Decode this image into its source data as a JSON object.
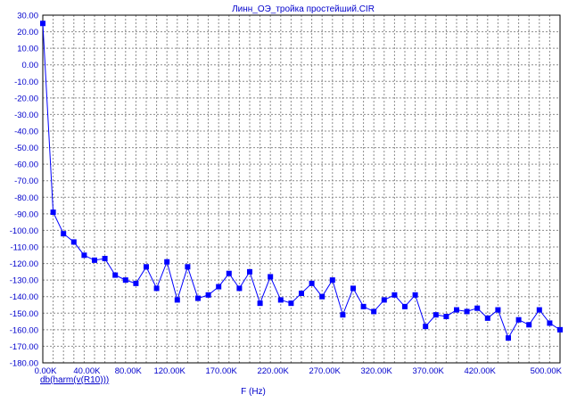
{
  "chart_data": {
    "type": "line",
    "title": "Линн_ОЭ_тройка простейший.CIR",
    "xlabel": "F (Hz)",
    "ylabel": "",
    "series_label": "db(harm(v(R10)))",
    "xlim": [
      0,
      500000
    ],
    "ylim": [
      -180,
      30
    ],
    "x_ticks": [
      0,
      40000,
      80000,
      120000,
      170000,
      220000,
      270000,
      320000,
      370000,
      420000,
      500000
    ],
    "x_tick_labels": [
      "0.00K",
      "40.00K",
      "80.00K",
      "120.00K",
      "170.00K",
      "220.00K",
      "270.00K",
      "320.00K",
      "370.00K",
      "420.00K",
      "500.00K"
    ],
    "y_ticks": [
      30,
      20,
      10,
      0,
      -10,
      -20,
      -30,
      -40,
      -50,
      -60,
      -70,
      -80,
      -90,
      -100,
      -110,
      -120,
      -130,
      -140,
      -150,
      -160,
      -170,
      -180
    ],
    "y_tick_labels": [
      "30.00",
      "20.00",
      "10.00",
      "0.00",
      "-10.00",
      "-20.00",
      "-30.00",
      "-40.00",
      "-50.00",
      "-60.00",
      "-70.00",
      "-80.00",
      "-90.00",
      "-100.00",
      "-110.00",
      "-120.00",
      "-130.00",
      "-140.00",
      "-150.00",
      "-160.00",
      "-170.00",
      "-180.00"
    ],
    "grid": true,
    "series": [
      {
        "color": "#0000ff",
        "marker": "square",
        "x": [
          0,
          10000,
          20000,
          30000,
          40000,
          50000,
          60000,
          70000,
          80000,
          90000,
          100000,
          110000,
          120000,
          130000,
          140000,
          150000,
          160000,
          170000,
          180000,
          190000,
          200000,
          210000,
          220000,
          230000,
          240000,
          250000,
          260000,
          270000,
          280000,
          290000,
          300000,
          310000,
          320000,
          330000,
          340000,
          350000,
          360000,
          370000,
          380000,
          390000,
          400000,
          410000,
          420000,
          430000,
          440000,
          450000,
          460000,
          470000,
          480000,
          490000,
          500000
        ],
        "y": [
          25,
          -89,
          -102,
          -107,
          -115,
          -118,
          -117,
          -127,
          -130,
          -132,
          -122,
          -135,
          -119,
          -142,
          -122,
          -141,
          -139,
          -134,
          -126,
          -135,
          -125,
          -144,
          -128,
          -142,
          -144,
          -138,
          -132,
          -140,
          -130,
          -151,
          -135,
          -146,
          -149,
          -142,
          -139,
          -146,
          -139,
          -158,
          -151,
          -152,
          -148,
          -149,
          -147,
          -153,
          -148,
          -165,
          -154,
          -157,
          -148,
          -156,
          -160
        ]
      }
    ]
  }
}
